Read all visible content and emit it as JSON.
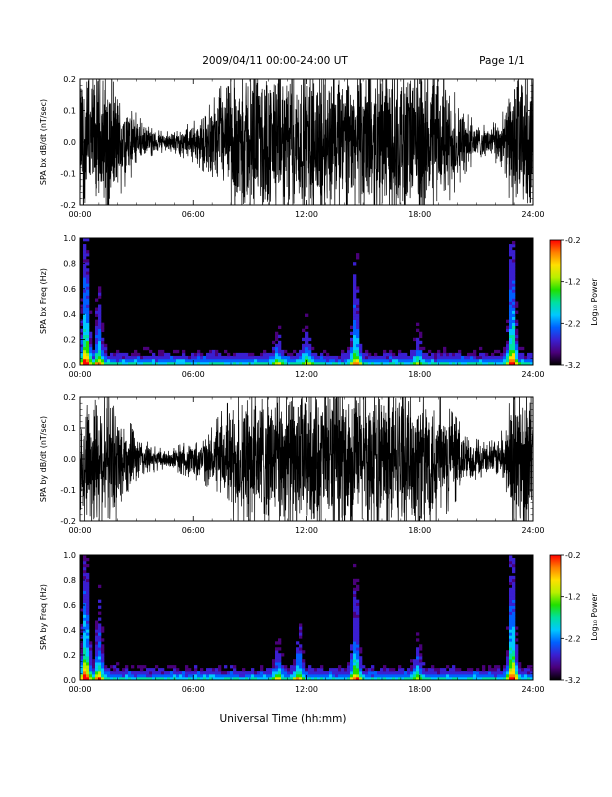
{
  "header": {
    "title": "2009/04/11   00:00-24:00 UT",
    "page": "Page 1/1"
  },
  "footer": {
    "xlabel": "Universal Time (hh:mm)"
  },
  "colorbar": {
    "label": "Log₁₀ Power",
    "range": [
      -3.2,
      -0.2
    ],
    "ticks": [
      {
        "value": -0.2,
        "label": "-0.2"
      },
      {
        "value": -1.2,
        "label": "-1.2"
      },
      {
        "value": -2.2,
        "label": "-2.2"
      },
      {
        "value": -3.2,
        "label": "-3.2"
      }
    ],
    "colors": [
      "#000000",
      "#4a007a",
      "#3a1fd0",
      "#0060ff",
      "#00c8ff",
      "#00e0a0",
      "#20e000",
      "#b8f000",
      "#ffe000",
      "#ff8000",
      "#ff0000"
    ]
  },
  "chart_data": [
    {
      "type": "line",
      "ylabel": "SPA bx dB/dt (nT/sec)",
      "xlim": [
        0,
        24
      ],
      "ylim": [
        -0.2,
        0.2
      ],
      "xticks": [
        "00:00",
        "06:00",
        "12:00",
        "18:00",
        "24:00"
      ],
      "yticks": [
        {
          "value": 0.2,
          "label": "0.2"
        },
        {
          "value": 0.1,
          "label": "0.1"
        },
        {
          "value": 0.0,
          "label": "0.0"
        },
        {
          "value": -0.1,
          "label": "-0.1"
        },
        {
          "value": -0.2,
          "label": "-0.2"
        }
      ],
      "envelope": {
        "hours": [
          0,
          0.5,
          1,
          1.5,
          2,
          2.5,
          3,
          3.5,
          4,
          4.5,
          5,
          5.5,
          6,
          6.5,
          7,
          7.5,
          8,
          8.5,
          9,
          9.5,
          10,
          10.5,
          11,
          11.5,
          12,
          12.5,
          13,
          13.5,
          14,
          14.5,
          15,
          15.5,
          16,
          16.5,
          17,
          17.5,
          18,
          18.5,
          19,
          19.5,
          20,
          20.5,
          21,
          21.5,
          22,
          22.5,
          23,
          23.5,
          24
        ],
        "amplitude": [
          0.2,
          0.2,
          0.2,
          0.2,
          0.14,
          0.1,
          0.07,
          0.04,
          0.03,
          0.025,
          0.03,
          0.04,
          0.05,
          0.07,
          0.1,
          0.14,
          0.17,
          0.2,
          0.2,
          0.2,
          0.2,
          0.2,
          0.2,
          0.2,
          0.2,
          0.2,
          0.2,
          0.2,
          0.2,
          0.2,
          0.2,
          0.2,
          0.2,
          0.2,
          0.2,
          0.2,
          0.2,
          0.2,
          0.2,
          0.15,
          0.11,
          0.07,
          0.05,
          0.04,
          0.05,
          0.08,
          0.2,
          0.2,
          0.2
        ]
      }
    },
    {
      "type": "heatmap",
      "ylabel": "SPA bx Freq (Hz)",
      "xlim": [
        0,
        24
      ],
      "ylim": [
        0,
        1.0
      ],
      "xticks": [
        "00:00",
        "06:00",
        "12:00",
        "18:00",
        "24:00"
      ],
      "yticks": [
        {
          "value": 1.0,
          "label": "1.0"
        },
        {
          "value": 0.8,
          "label": "0.8"
        },
        {
          "value": 0.6,
          "label": "0.6"
        },
        {
          "value": 0.4,
          "label": "0.4"
        },
        {
          "value": 0.2,
          "label": "0.2"
        },
        {
          "value": 0.0,
          "label": "0.0"
        }
      ],
      "bursts": [
        {
          "hour": 0.3,
          "intensity": 1.0,
          "reach": 1.0
        },
        {
          "hour": 1.0,
          "intensity": 0.65,
          "reach": 0.6
        },
        {
          "hour": 10.5,
          "intensity": 0.4,
          "reach": 0.3
        },
        {
          "hour": 12.0,
          "intensity": 0.45,
          "reach": 0.35
        },
        {
          "hour": 14.6,
          "intensity": 0.7,
          "reach": 0.85
        },
        {
          "hour": 17.9,
          "intensity": 0.4,
          "reach": 0.25
        },
        {
          "hour": 22.9,
          "intensity": 0.95,
          "reach": 1.0
        }
      ]
    },
    {
      "type": "line",
      "ylabel": "SPA by dB/dt (nT/sec)",
      "xlim": [
        0,
        24
      ],
      "ylim": [
        -0.2,
        0.2
      ],
      "xticks": [
        "00:00",
        "06:00",
        "12:00",
        "18:00",
        "24:00"
      ],
      "yticks": [
        {
          "value": 0.2,
          "label": "0.2"
        },
        {
          "value": 0.1,
          "label": "0.1"
        },
        {
          "value": 0.0,
          "label": "0.0"
        },
        {
          "value": -0.1,
          "label": "-0.1"
        },
        {
          "value": -0.2,
          "label": "-0.2"
        }
      ],
      "envelope": {
        "hours": [
          0,
          0.5,
          1,
          1.5,
          2,
          2.5,
          3,
          3.5,
          4,
          4.5,
          5,
          5.5,
          6,
          6.5,
          7,
          7.5,
          8,
          8.5,
          9,
          9.5,
          10,
          10.5,
          11,
          11.5,
          12,
          12.5,
          13,
          13.5,
          14,
          14.5,
          15,
          15.5,
          16,
          16.5,
          17,
          17.5,
          18,
          18.5,
          19,
          19.5,
          20,
          20.5,
          21,
          21.5,
          22,
          22.5,
          23,
          23.5,
          24
        ],
        "amplitude": [
          0.12,
          0.2,
          0.2,
          0.18,
          0.15,
          0.1,
          0.07,
          0.05,
          0.03,
          0.025,
          0.03,
          0.04,
          0.05,
          0.06,
          0.08,
          0.12,
          0.15,
          0.17,
          0.18,
          0.2,
          0.2,
          0.19,
          0.2,
          0.2,
          0.2,
          0.2,
          0.2,
          0.2,
          0.2,
          0.2,
          0.2,
          0.2,
          0.2,
          0.2,
          0.2,
          0.19,
          0.2,
          0.2,
          0.17,
          0.13,
          0.1,
          0.07,
          0.05,
          0.04,
          0.05,
          0.08,
          0.2,
          0.2,
          0.2
        ]
      }
    },
    {
      "type": "heatmap",
      "ylabel": "SPA by Freq (Hz)",
      "xlim": [
        0,
        24
      ],
      "ylim": [
        0,
        1.0
      ],
      "xticks": [
        "00:00",
        "06:00",
        "12:00",
        "18:00",
        "24:00"
      ],
      "yticks": [
        {
          "value": 1.0,
          "label": "1.0"
        },
        {
          "value": 0.8,
          "label": "0.8"
        },
        {
          "value": 0.6,
          "label": "0.6"
        },
        {
          "value": 0.4,
          "label": "0.4"
        },
        {
          "value": 0.2,
          "label": "0.2"
        },
        {
          "value": 0.0,
          "label": "0.0"
        }
      ],
      "bursts": [
        {
          "hour": 0.3,
          "intensity": 1.0,
          "reach": 1.0
        },
        {
          "hour": 1.0,
          "intensity": 0.7,
          "reach": 0.6
        },
        {
          "hour": 10.5,
          "intensity": 0.45,
          "reach": 0.3
        },
        {
          "hour": 11.6,
          "intensity": 0.55,
          "reach": 0.45
        },
        {
          "hour": 14.6,
          "intensity": 0.75,
          "reach": 0.8
        },
        {
          "hour": 17.9,
          "intensity": 0.45,
          "reach": 0.3
        },
        {
          "hour": 22.9,
          "intensity": 1.0,
          "reach": 1.0
        }
      ]
    }
  ]
}
